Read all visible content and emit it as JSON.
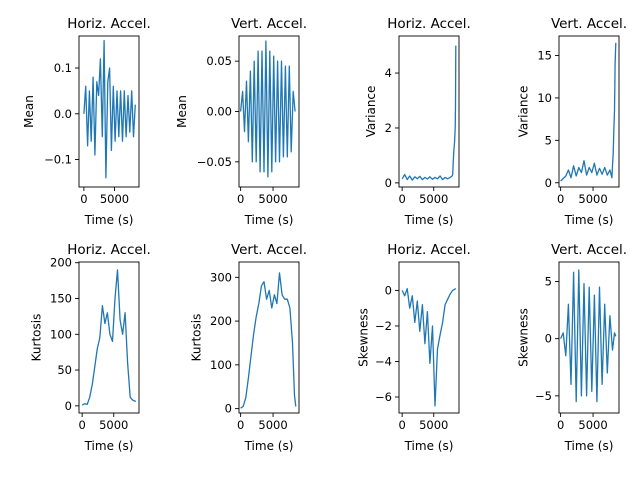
{
  "series_color": "#1f77b4",
  "chart_data": [
    {
      "type": "line",
      "title": "Horiz. Accel.",
      "xlabel": "Time (s)",
      "ylabel": "Mean",
      "xlim": [
        -800,
        9000
      ],
      "ylim": [
        -0.16,
        0.17
      ],
      "xticks": [
        0,
        5000
      ],
      "yticks": [
        -0.1,
        0.0,
        0.1
      ],
      "ytick_labels": [
        "−0.1",
        "0.0",
        "0.1"
      ],
      "x": [
        0,
        300,
        600,
        900,
        1200,
        1500,
        1800,
        2100,
        2400,
        2700,
        3000,
        3300,
        3600,
        3900,
        4200,
        4500,
        4800,
        5100,
        5400,
        5700,
        6000,
        6300,
        6600,
        6900,
        7200,
        7500,
        7800,
        8100,
        8400
      ],
      "y": [
        0.0,
        0.06,
        -0.07,
        0.05,
        -0.06,
        0.08,
        -0.09,
        0.07,
        0.04,
        0.12,
        -0.05,
        0.16,
        -0.14,
        0.07,
        0.1,
        -0.08,
        0.06,
        -0.06,
        0.05,
        -0.05,
        0.05,
        -0.06,
        0.05,
        -0.05,
        0.04,
        -0.04,
        0.05,
        -0.05,
        0.02
      ]
    },
    {
      "type": "line",
      "title": "Vert. Accel.",
      "xlabel": "Time (s)",
      "ylabel": "Mean",
      "xlim": [
        -250,
        9000
      ],
      "ylim": [
        -0.075,
        0.075
      ],
      "xticks": [
        0,
        5000
      ],
      "yticks": [
        -0.05,
        0.0,
        0.05
      ],
      "ytick_labels": [
        "−0.05",
        "0.00",
        "0.05"
      ],
      "x": [
        0,
        300,
        600,
        900,
        1200,
        1500,
        1800,
        2100,
        2400,
        2700,
        3000,
        3300,
        3600,
        3900,
        4200,
        4500,
        4800,
        5100,
        5400,
        5700,
        6000,
        6300,
        6600,
        6900,
        7200,
        7500,
        7800,
        8100,
        8400
      ],
      "y": [
        0.0,
        0.02,
        -0.02,
        0.03,
        -0.03,
        0.04,
        -0.05,
        0.05,
        -0.05,
        0.06,
        -0.06,
        0.06,
        -0.06,
        0.07,
        -0.065,
        0.06,
        -0.06,
        0.055,
        -0.05,
        0.05,
        -0.05,
        0.05,
        -0.045,
        0.045,
        -0.045,
        0.045,
        -0.04,
        0.02,
        0.0
      ]
    },
    {
      "type": "line",
      "title": "Horiz. Accel.",
      "xlabel": "Time (s)",
      "ylabel": "Variance",
      "xlim": [
        -500,
        9000
      ],
      "ylim": [
        -0.15,
        5.35
      ],
      "xticks": [
        0,
        5000
      ],
      "yticks": [
        0,
        2,
        4
      ],
      "ytick_labels": [
        "0",
        "2",
        "4"
      ],
      "x": [
        0,
        400,
        800,
        1200,
        1600,
        2000,
        2400,
        2800,
        3200,
        3600,
        4000,
        4400,
        4800,
        5200,
        5600,
        6000,
        6400,
        6800,
        7200,
        7600,
        7900,
        8000,
        8100,
        8200,
        8300,
        8400,
        8450,
        8500
      ],
      "y": [
        0.15,
        0.3,
        0.12,
        0.25,
        0.1,
        0.22,
        0.15,
        0.24,
        0.12,
        0.2,
        0.14,
        0.22,
        0.13,
        0.2,
        0.15,
        0.25,
        0.12,
        0.2,
        0.15,
        0.2,
        0.25,
        0.3,
        0.8,
        1.2,
        1.5,
        2.0,
        2.8,
        5.0
      ]
    },
    {
      "type": "line",
      "title": "Vert. Accel.",
      "xlabel": "Time (s)",
      "ylabel": "Variance",
      "xlim": [
        -250,
        9000
      ],
      "ylim": [
        -0.5,
        17.3
      ],
      "xticks": [
        0,
        5000
      ],
      "yticks": [
        0,
        5,
        10,
        15
      ],
      "ytick_labels": [
        "0",
        "5",
        "10",
        "15"
      ],
      "x": [
        0,
        400,
        800,
        1200,
        1600,
        2000,
        2400,
        2800,
        3200,
        3600,
        4000,
        4400,
        4800,
        5200,
        5600,
        6000,
        6400,
        6800,
        7200,
        7600,
        7900,
        8000,
        8100,
        8200,
        8300,
        8350,
        8400,
        8500
      ],
      "y": [
        0.2,
        0.5,
        0.8,
        1.5,
        0.6,
        2.0,
        0.8,
        1.8,
        1.2,
        2.6,
        0.9,
        1.8,
        1.2,
        2.3,
        0.9,
        1.7,
        1.0,
        1.8,
        0.9,
        1.5,
        0.6,
        2.0,
        3.5,
        6.0,
        8.5,
        11.0,
        14.0,
        16.5
      ]
    },
    {
      "type": "line",
      "title": "Horiz. Accel.",
      "xlabel": "Time (s)",
      "ylabel": "Kurtosis",
      "xlim": [
        -500,
        9000
      ],
      "ylim": [
        -10,
        201
      ],
      "xticks": [
        0,
        5000
      ],
      "yticks": [
        0,
        50,
        100,
        150,
        200
      ],
      "ytick_labels": [
        "0",
        "50",
        "100",
        "150",
        "200"
      ],
      "x": [
        0,
        400,
        800,
        1200,
        1600,
        2000,
        2400,
        2800,
        3200,
        3600,
        4000,
        4400,
        4800,
        5200,
        5600,
        6000,
        6400,
        6800,
        7200,
        7600,
        8000,
        8500
      ],
      "y": [
        1,
        3,
        2,
        12,
        30,
        55,
        80,
        95,
        140,
        115,
        130,
        100,
        90,
        150,
        190,
        120,
        100,
        130,
        60,
        12,
        8,
        6
      ]
    },
    {
      "type": "line",
      "title": "Vert. Accel.",
      "xlabel": "Time (s)",
      "ylabel": "Kurtosis",
      "xlim": [
        -250,
        9000
      ],
      "ylim": [
        -10,
        335
      ],
      "xticks": [
        0,
        5000
      ],
      "yticks": [
        0,
        100,
        200,
        300
      ],
      "ytick_labels": [
        "0",
        "100",
        "200",
        "300"
      ],
      "x": [
        0,
        400,
        800,
        1200,
        1600,
        2000,
        2400,
        2800,
        3200,
        3600,
        4000,
        4400,
        4800,
        5200,
        5600,
        6000,
        6400,
        6800,
        7200,
        7600,
        8000,
        8300,
        8500
      ],
      "y": [
        1,
        5,
        25,
        70,
        120,
        170,
        210,
        240,
        280,
        290,
        250,
        270,
        230,
        260,
        240,
        310,
        260,
        250,
        250,
        230,
        150,
        30,
        5
      ]
    },
    {
      "type": "line",
      "title": "Horiz. Accel.",
      "xlabel": "Time (s)",
      "ylabel": "Skewness",
      "xlim": [
        -500,
        9000
      ],
      "ylim": [
        -6.9,
        1.6
      ],
      "xticks": [
        0,
        5000
      ],
      "yticks": [
        -6,
        -4,
        -2,
        0
      ],
      "ytick_labels": [
        "−6",
        "−4",
        "−2",
        "0"
      ],
      "x": [
        0,
        400,
        800,
        1200,
        1600,
        2000,
        2400,
        2800,
        3200,
        3600,
        4000,
        4400,
        4800,
        5200,
        5600,
        6000,
        6400,
        6800,
        7200,
        7600,
        8000,
        8500
      ],
      "y": [
        0.0,
        -0.3,
        0.1,
        -1.0,
        -0.3,
        -1.8,
        -0.6,
        -2.3,
        -0.8,
        -3.0,
        -1.2,
        -4.1,
        -2.0,
        -6.5,
        -3.3,
        -2.5,
        -1.8,
        -0.8,
        -0.5,
        -0.2,
        0.0,
        0.1
      ]
    },
    {
      "type": "line",
      "title": "Vert. Accel.",
      "xlabel": "Time (s)",
      "ylabel": "Skewness",
      "xlim": [
        -250,
        9000
      ],
      "ylim": [
        -6.5,
        6.7
      ],
      "xticks": [
        0,
        5000
      ],
      "yticks": [
        -5,
        0,
        5
      ],
      "ytick_labels": [
        "−5",
        "0",
        "5"
      ],
      "x": [
        0,
        400,
        800,
        1200,
        1600,
        2000,
        2400,
        2800,
        3200,
        3600,
        4000,
        4400,
        4800,
        5200,
        5600,
        6000,
        6400,
        6800,
        7200,
        7600,
        8000,
        8300,
        8500
      ],
      "y": [
        0,
        0.5,
        -1.5,
        3.0,
        -4.0,
        5.8,
        -5.5,
        6.0,
        -5.0,
        4.8,
        -5.0,
        4.5,
        -4.6,
        3.8,
        -5.5,
        4.5,
        -4.0,
        3.0,
        -3.0,
        2.0,
        -1.0,
        0.5,
        0.2
      ]
    }
  ]
}
